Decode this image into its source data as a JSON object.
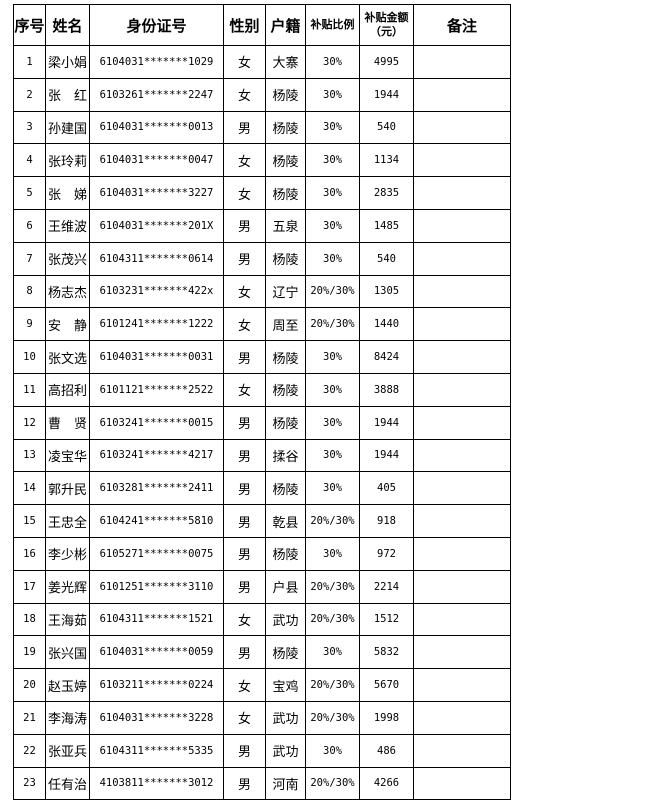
{
  "table": {
    "headers": [
      "序号",
      "姓名",
      "身份证号",
      "性别",
      "户籍",
      "补贴比例",
      "补贴金额\n（元）",
      "备注"
    ],
    "rows": [
      [
        "1",
        "梁小娟",
        "6104031*******1029",
        "女",
        "大寨",
        "30%",
        "4995",
        ""
      ],
      [
        "2",
        "张　红",
        "6103261*******2247",
        "女",
        "杨陵",
        "30%",
        "1944",
        ""
      ],
      [
        "3",
        "孙建国",
        "6104031*******0013",
        "男",
        "杨陵",
        "30%",
        "540",
        ""
      ],
      [
        "4",
        "张玲莉",
        "6104031*******0047",
        "女",
        "杨陵",
        "30%",
        "1134",
        ""
      ],
      [
        "5",
        "张　娣",
        "6104031*******3227",
        "女",
        "杨陵",
        "30%",
        "2835",
        ""
      ],
      [
        "6",
        "王维波",
        "6104031*******201X",
        "男",
        "五泉",
        "30%",
        "1485",
        ""
      ],
      [
        "7",
        "张茂兴",
        "6104311*******0614",
        "男",
        "杨陵",
        "30%",
        "540",
        ""
      ],
      [
        "8",
        "杨志杰",
        "6103231*******422x",
        "女",
        "辽宁",
        "20%/30%",
        "1305",
        ""
      ],
      [
        "9",
        "安　静",
        "6101241*******1222",
        "女",
        "周至",
        "20%/30%",
        "1440",
        ""
      ],
      [
        "10",
        "张文选",
        "6104031*******0031",
        "男",
        "杨陵",
        "30%",
        "8424",
        ""
      ],
      [
        "11",
        "高招利",
        "6101121*******2522",
        "女",
        "杨陵",
        "30%",
        "3888",
        ""
      ],
      [
        "12",
        "曹　贤",
        "6103241*******0015",
        "男",
        "杨陵",
        "30%",
        "1944",
        ""
      ],
      [
        "13",
        "凌宝华",
        "6103241*******4217",
        "男",
        "揉谷",
        "30%",
        "1944",
        ""
      ],
      [
        "14",
        "郭升民",
        "6103281*******2411",
        "男",
        "杨陵",
        "30%",
        "405",
        ""
      ],
      [
        "15",
        "王忠全",
        "6104241*******5810",
        "男",
        "乾县",
        "20%/30%",
        "918",
        ""
      ],
      [
        "16",
        "李少彬",
        "6105271*******0075",
        "男",
        "杨陵",
        "30%",
        "972",
        ""
      ],
      [
        "17",
        "姜光辉",
        "6101251*******3110",
        "男",
        "户县",
        "20%/30%",
        "2214",
        ""
      ],
      [
        "18",
        "王海茹",
        "6104311*******1521",
        "女",
        "武功",
        "20%/30%",
        "1512",
        ""
      ],
      [
        "19",
        "张兴国",
        "6104031*******0059",
        "男",
        "杨陵",
        "30%",
        "5832",
        ""
      ],
      [
        "20",
        "赵玉婷",
        "6103211*******0224",
        "女",
        "宝鸡",
        "20%/30%",
        "5670",
        ""
      ],
      [
        "21",
        "李海涛",
        "6104031*******3228",
        "女",
        "武功",
        "20%/30%",
        "1998",
        ""
      ],
      [
        "22",
        "张亚兵",
        "6104311*******5335",
        "男",
        "武功",
        "30%",
        "486",
        ""
      ],
      [
        "23",
        "任有治",
        "4103811*******3012",
        "男",
        "河南",
        "20%/30%",
        "4266",
        ""
      ]
    ]
  }
}
